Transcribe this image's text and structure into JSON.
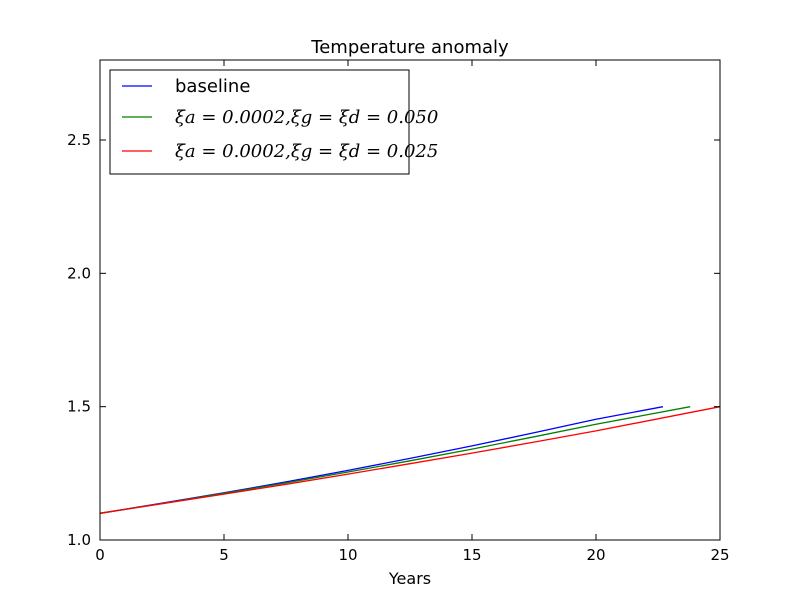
{
  "chart_data": {
    "type": "line",
    "title": "Temperature anomaly",
    "xlabel": "Years",
    "ylabel": "",
    "xlim": [
      0,
      25
    ],
    "ylim": [
      1.0,
      2.8
    ],
    "xticks": [
      0,
      5,
      10,
      15,
      20,
      25
    ],
    "xtick_labels": [
      "0",
      "5",
      "10",
      "15",
      "20",
      "25"
    ],
    "yticks": [
      1.0,
      1.5,
      2.0,
      2.5
    ],
    "ytick_labels": [
      "1.0",
      "1.5",
      "2.0",
      "2.5"
    ],
    "grid": false,
    "legend_position": "top-left",
    "series": [
      {
        "name": "baseline",
        "color": "#0000ff",
        "x": [
          0,
          2.5,
          5,
          7.5,
          10,
          12.5,
          15,
          17.5,
          20,
          22.7
        ],
        "y": [
          1.1,
          1.138,
          1.177,
          1.218,
          1.261,
          1.306,
          1.353,
          1.402,
          1.453,
          1.5
        ]
      },
      {
        "name": "ξa = 0.0002,ξg = ξd = 0.050",
        "color": "#008000",
        "x": [
          0,
          2.5,
          5,
          7.5,
          10,
          12.5,
          15,
          17.5,
          20,
          23.8
        ],
        "y": [
          1.1,
          1.137,
          1.175,
          1.214,
          1.255,
          1.297,
          1.341,
          1.387,
          1.434,
          1.5
        ]
      },
      {
        "name": "ξa = 0.0002,ξg = ξd = 0.025",
        "color": "#ff0000",
        "x": [
          0,
          2.5,
          5,
          7.5,
          10,
          12.5,
          15,
          17.5,
          20,
          25
        ],
        "y": [
          1.1,
          1.136,
          1.172,
          1.209,
          1.247,
          1.286,
          1.326,
          1.367,
          1.409,
          1.5
        ]
      }
    ]
  }
}
